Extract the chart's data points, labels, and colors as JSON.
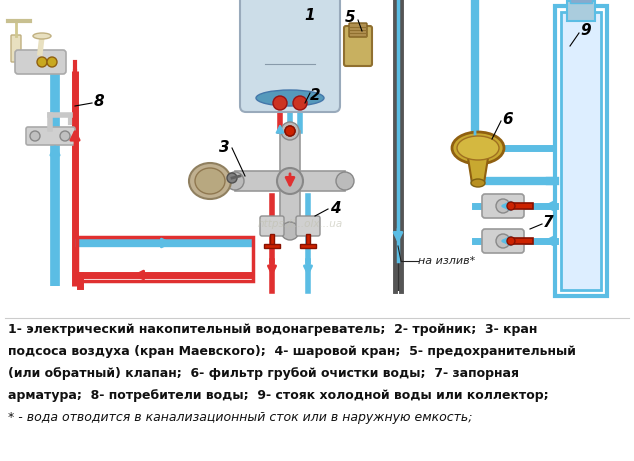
{
  "background_color": "#ffffff",
  "legend_lines": [
    "1- электрический накопительный водонагреватель;  2- тройник;  3- кран",
    "подсоса воздуха (кран Маевского);  4- шаровой кран;  5- предохранительный",
    "(или обратный) клапан;  6- фильтр грубой очистки воды;  7- запорная",
    "арматура;  8- потребители воды;  9- стояк холодной воды или коллектор;",
    "* - вода отводится в канализационный сток или в наружную емкость;"
  ],
  "cold_color": "#5bbde4",
  "hot_color": "#e03030",
  "pipe_lw": 5,
  "legend_fontsize": 9.0,
  "text_color": "#111111"
}
